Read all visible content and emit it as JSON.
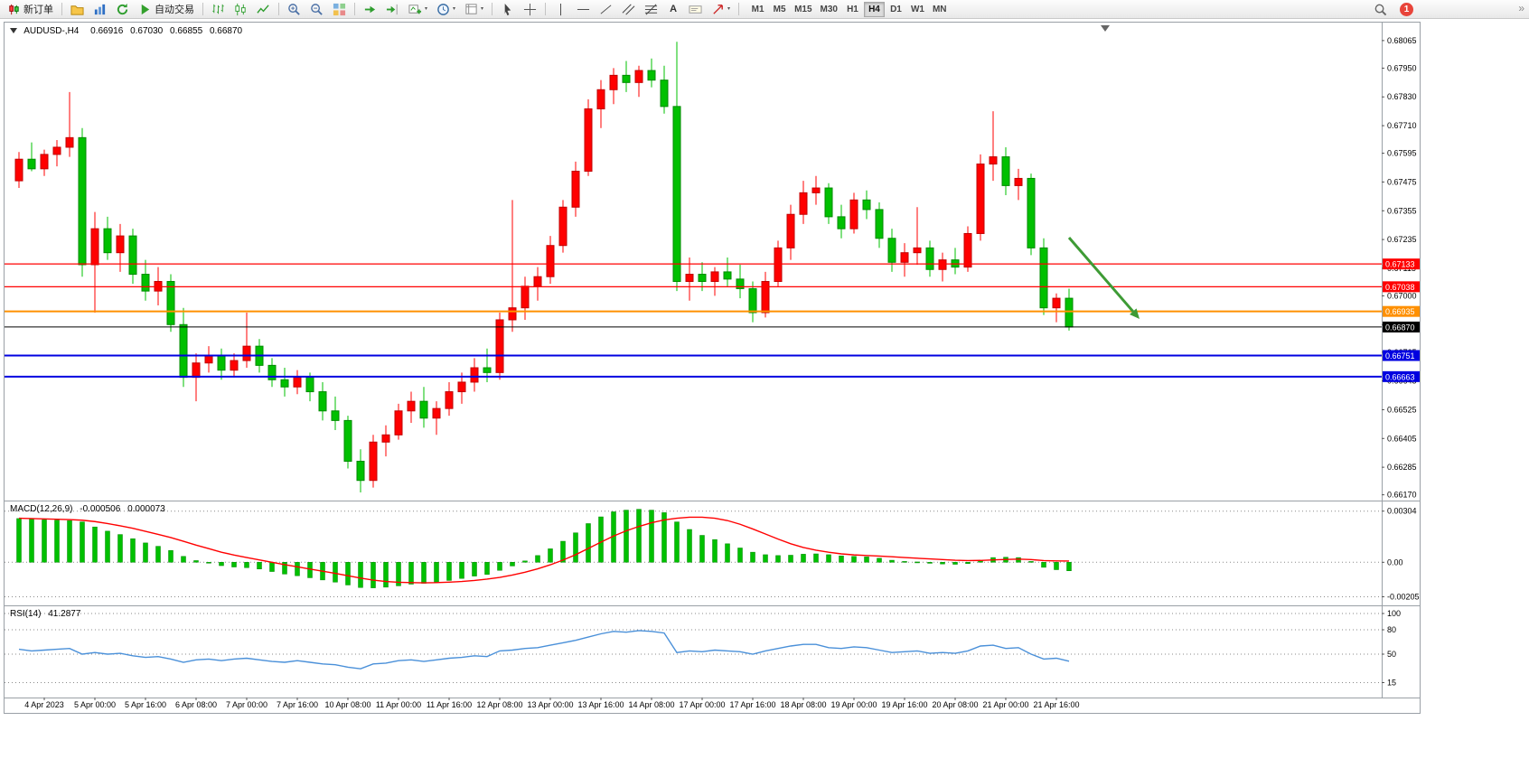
{
  "toolbar": {
    "new_order": "新订单",
    "autotrading": "自动交易",
    "text_tool_label": "A",
    "timeframes": [
      "M1",
      "M5",
      "M15",
      "M30",
      "H1",
      "H4",
      "D1",
      "W1",
      "MN"
    ],
    "active_timeframe": "H4",
    "notification_count": "1",
    "overflow_glyph": "»"
  },
  "chart_data": {
    "type": "candlestick",
    "symbol": "AUDUSD-",
    "period": "H4",
    "title": "AUDUSD-,H4",
    "ohlc_display": {
      "open": "0.66916",
      "high": "0.67030",
      "low": "0.66855",
      "close": "0.66870"
    },
    "price_range": {
      "top": 0.6814,
      "bottom": 0.66146
    },
    "price_axis_labels": [
      "0.68065",
      "0.67950",
      "0.67830",
      "0.67710",
      "0.67595",
      "0.67475",
      "0.67355",
      "0.67235",
      "0.67115",
      "0.67000",
      "0.66880",
      "0.66765",
      "0.66645",
      "0.66525",
      "0.66405",
      "0.66285",
      "0.66170"
    ],
    "time_labels": [
      "4 Apr 2023",
      "5 Apr 00:00",
      "5 Apr 16:00",
      "6 Apr 08:00",
      "7 Apr 00:00",
      "7 Apr 16:00",
      "10 Apr 08:00",
      "11 Apr 00:00",
      "11 Apr 16:00",
      "12 Apr 08:00",
      "13 Apr 00:00",
      "13 Apr 16:00",
      "14 Apr 08:00",
      "17 Apr 00:00",
      "17 Apr 16:00",
      "18 Apr 08:00",
      "19 Apr 00:00",
      "19 Apr 16:00",
      "20 Apr 08:00",
      "21 Apr 00:00",
      "21 Apr 16:00"
    ],
    "colors": {
      "bull": "#ff0000",
      "bull_border": "#c00000",
      "bear": "#00c000",
      "bear_border": "#008a00",
      "macd_histogram": "#00c000",
      "macd_signal": "#ff0000",
      "rsi_line": "#4a90d9",
      "arrow": "#3e9b35"
    },
    "hlines": [
      {
        "price": "0.67133",
        "value": 0.67133,
        "color": "#ff0000",
        "width": 1.2
      },
      {
        "price": "0.67038",
        "value": 0.67038,
        "color": "#ff0000",
        "width": 1.2
      },
      {
        "price": "0.66935",
        "value": 0.66935,
        "color": "#ff9000",
        "width": 2
      },
      {
        "price": "0.66751",
        "value": 0.66751,
        "color": "#0000e0",
        "width": 2
      },
      {
        "price": "0.66663",
        "value": 0.66663,
        "color": "#0000e0",
        "width": 2
      }
    ],
    "current_price": {
      "price": "0.66870",
      "value": 0.6687,
      "color": "#000000"
    },
    "arrow_annotation": {
      "color": "#3e9b35",
      "from": [
        1178,
        238
      ],
      "to": [
        1256,
        328
      ]
    },
    "candles": [
      [
        0.6748,
        0.676,
        0.6745,
        0.6757
      ],
      [
        0.6757,
        0.6764,
        0.6752,
        0.6753
      ],
      [
        0.6753,
        0.6761,
        0.675,
        0.6759
      ],
      [
        0.6759,
        0.6765,
        0.6754,
        0.6762
      ],
      [
        0.6762,
        0.6785,
        0.6758,
        0.6766
      ],
      [
        0.6766,
        0.677,
        0.6708,
        0.6713
      ],
      [
        0.6713,
        0.6735,
        0.6693,
        0.6728
      ],
      [
        0.6728,
        0.6733,
        0.6715,
        0.6718
      ],
      [
        0.6718,
        0.673,
        0.671,
        0.6725
      ],
      [
        0.6725,
        0.6728,
        0.6705,
        0.6709
      ],
      [
        0.6709,
        0.6715,
        0.6698,
        0.6702
      ],
      [
        0.6702,
        0.6712,
        0.6696,
        0.6706
      ],
      [
        0.6706,
        0.6709,
        0.6685,
        0.6688
      ],
      [
        0.6688,
        0.6695,
        0.6662,
        0.6666
      ],
      [
        0.6666,
        0.6676,
        0.6656,
        0.6672
      ],
      [
        0.6672,
        0.6679,
        0.6668,
        0.6675
      ],
      [
        0.6675,
        0.6678,
        0.6665,
        0.6669
      ],
      [
        0.6669,
        0.6676,
        0.6666,
        0.6673
      ],
      [
        0.6673,
        0.6693,
        0.667,
        0.6679
      ],
      [
        0.6679,
        0.6682,
        0.6668,
        0.6671
      ],
      [
        0.6671,
        0.6674,
        0.6662,
        0.6665
      ],
      [
        0.6665,
        0.667,
        0.6658,
        0.6662
      ],
      [
        0.6662,
        0.6669,
        0.6659,
        0.6666
      ],
      [
        0.6666,
        0.6668,
        0.6656,
        0.666
      ],
      [
        0.666,
        0.6664,
        0.6648,
        0.6652
      ],
      [
        0.6652,
        0.6658,
        0.6644,
        0.6648
      ],
      [
        0.6648,
        0.665,
        0.6628,
        0.6631
      ],
      [
        0.6631,
        0.6636,
        0.6618,
        0.6623
      ],
      [
        0.6623,
        0.6642,
        0.662,
        0.6639
      ],
      [
        0.6639,
        0.6646,
        0.6633,
        0.6642
      ],
      [
        0.6642,
        0.6655,
        0.664,
        0.6652
      ],
      [
        0.6652,
        0.666,
        0.6647,
        0.6656
      ],
      [
        0.6656,
        0.6662,
        0.6645,
        0.6649
      ],
      [
        0.6649,
        0.6656,
        0.6642,
        0.6653
      ],
      [
        0.6653,
        0.6664,
        0.665,
        0.666
      ],
      [
        0.666,
        0.6668,
        0.6655,
        0.6664
      ],
      [
        0.6664,
        0.6674,
        0.666,
        0.667
      ],
      [
        0.667,
        0.6678,
        0.6664,
        0.6668
      ],
      [
        0.6668,
        0.6693,
        0.6665,
        0.669
      ],
      [
        0.669,
        0.674,
        0.6685,
        0.6695
      ],
      [
        0.6695,
        0.6708,
        0.669,
        0.6704
      ],
      [
        0.6704,
        0.6712,
        0.6698,
        0.6708
      ],
      [
        0.6708,
        0.6725,
        0.6705,
        0.6721
      ],
      [
        0.6721,
        0.674,
        0.6718,
        0.6737
      ],
      [
        0.6737,
        0.6756,
        0.6733,
        0.6752
      ],
      [
        0.6752,
        0.6782,
        0.675,
        0.6778
      ],
      [
        0.6778,
        0.679,
        0.677,
        0.6786
      ],
      [
        0.6786,
        0.6795,
        0.678,
        0.6792
      ],
      [
        0.6792,
        0.6798,
        0.6785,
        0.6789
      ],
      [
        0.6789,
        0.6796,
        0.6783,
        0.6794
      ],
      [
        0.6794,
        0.6799,
        0.6787,
        0.679
      ],
      [
        0.679,
        0.6796,
        0.6776,
        0.6779
      ],
      [
        0.6779,
        0.6806,
        0.6702,
        0.6706
      ],
      [
        0.6706,
        0.6716,
        0.6698,
        0.6709
      ],
      [
        0.6709,
        0.6714,
        0.6702,
        0.6706
      ],
      [
        0.6706,
        0.6712,
        0.67,
        0.671
      ],
      [
        0.671,
        0.6716,
        0.6704,
        0.6707
      ],
      [
        0.6707,
        0.6713,
        0.6699,
        0.6703
      ],
      [
        0.6703,
        0.6706,
        0.6689,
        0.6693
      ],
      [
        0.6693,
        0.671,
        0.6691,
        0.6706
      ],
      [
        0.6706,
        0.6723,
        0.6704,
        0.672
      ],
      [
        0.672,
        0.6738,
        0.6715,
        0.6734
      ],
      [
        0.6734,
        0.6748,
        0.673,
        0.6743
      ],
      [
        0.6743,
        0.675,
        0.6738,
        0.6745
      ],
      [
        0.6745,
        0.6747,
        0.673,
        0.6733
      ],
      [
        0.6733,
        0.6738,
        0.6724,
        0.6728
      ],
      [
        0.6728,
        0.6743,
        0.6726,
        0.674
      ],
      [
        0.674,
        0.6744,
        0.6732,
        0.6736
      ],
      [
        0.6736,
        0.6739,
        0.672,
        0.6724
      ],
      [
        0.6724,
        0.6728,
        0.671,
        0.6714
      ],
      [
        0.6714,
        0.6722,
        0.6708,
        0.6718
      ],
      [
        0.6718,
        0.6737,
        0.6713,
        0.672
      ],
      [
        0.672,
        0.6723,
        0.6708,
        0.6711
      ],
      [
        0.6711,
        0.6718,
        0.6706,
        0.6715
      ],
      [
        0.6715,
        0.672,
        0.6709,
        0.6712
      ],
      [
        0.6712,
        0.6729,
        0.671,
        0.6726
      ],
      [
        0.6726,
        0.6759,
        0.6723,
        0.6755
      ],
      [
        0.6755,
        0.6777,
        0.6748,
        0.6758
      ],
      [
        0.6758,
        0.6762,
        0.6742,
        0.6746
      ],
      [
        0.6746,
        0.6753,
        0.674,
        0.6749
      ],
      [
        0.6749,
        0.6751,
        0.6717,
        0.672
      ],
      [
        0.672,
        0.6724,
        0.6692,
        0.6695
      ],
      [
        0.6695,
        0.6701,
        0.6689,
        0.6699
      ],
      [
        0.6699,
        0.6703,
        0.66855,
        0.6687
      ]
    ],
    "macd": {
      "label": "MACD(12,26,9)",
      "main_value": "-0.000506",
      "signal_value": "0.000073",
      "axis_labels": [
        "0.00304",
        "0.00",
        "-0.00205"
      ],
      "scale": {
        "max": 0.0034,
        "min": -0.0024
      },
      "histogram": [
        0.0026,
        0.00256,
        0.00252,
        0.0025,
        0.00248,
        0.0024,
        0.0021,
        0.00185,
        0.00165,
        0.0014,
        0.00115,
        0.00095,
        0.0007,
        0.00035,
        0.0001,
        -5e-05,
        -0.0002,
        -0.00028,
        -0.00032,
        -0.0004,
        -0.00055,
        -0.0007,
        -0.0008,
        -0.00092,
        -0.00105,
        -0.00118,
        -0.00135,
        -0.0015,
        -0.00152,
        -0.00148,
        -0.0014,
        -0.0013,
        -0.00125,
        -0.00118,
        -0.00108,
        -0.00096,
        -0.00082,
        -0.00072,
        -0.00048,
        -0.00022,
        8e-05,
        0.0004,
        0.0008,
        0.00125,
        0.00175,
        0.0023,
        0.0027,
        0.003,
        0.0031,
        0.00315,
        0.0031,
        0.00295,
        0.0024,
        0.00195,
        0.0016,
        0.00135,
        0.0011,
        0.00085,
        0.0006,
        0.00045,
        0.0004,
        0.00042,
        0.00048,
        0.0005,
        0.00045,
        0.00038,
        0.00035,
        0.00032,
        0.00024,
        0.00012,
        5e-05,
        2e-05,
        -6e-05,
        -0.0001,
        -0.00012,
        -8e-05,
        0.0001,
        0.00028,
        0.0003,
        0.00028,
        5e-05,
        -0.0003,
        -0.00044,
        -0.000506
      ],
      "signal": [
        0.00262,
        0.0026,
        0.00258,
        0.00256,
        0.00254,
        0.0025,
        0.00242,
        0.0023,
        0.00217,
        0.00202,
        0.00184,
        0.00166,
        0.00147,
        0.00125,
        0.00102,
        0.00081,
        0.0006,
        0.00043,
        0.00028,
        0.00014,
        0.0,
        -0.00014,
        -0.00027,
        -0.0004,
        -0.00053,
        -0.00066,
        -0.0008,
        -0.00094,
        -0.00106,
        -0.00114,
        -0.00119,
        -0.00121,
        -0.00122,
        -0.00121,
        -0.00118,
        -0.00114,
        -0.00108,
        -0.001,
        -0.0009,
        -0.00076,
        -0.00059,
        -0.00039,
        -0.00015,
        0.00013,
        0.00045,
        0.00082,
        0.0012,
        0.00156,
        0.00187,
        0.00213,
        0.00235,
        0.00252,
        0.00262,
        0.00268,
        0.00268,
        0.00262,
        0.00248,
        0.00226,
        0.00198,
        0.00168,
        0.00138,
        0.0011,
        0.00088,
        0.00072,
        0.0006,
        0.0005,
        0.00044,
        0.0004,
        0.00037,
        0.00033,
        0.00028,
        0.00024,
        0.0002,
        0.00016,
        0.00012,
        0.0001,
        0.00011,
        0.00014,
        0.00017,
        0.00019,
        0.00016,
        0.0001,
        8e-05,
        7.3e-05
      ]
    },
    "rsi": {
      "label": "RSI(14)",
      "value": "41.2877",
      "axis_labels": [
        "100",
        "80",
        "50",
        "15"
      ],
      "levels": [
        100,
        80,
        50,
        15
      ],
      "values": [
        56,
        54,
        55,
        56,
        57,
        50,
        52,
        50,
        51,
        48,
        46,
        47,
        44,
        40,
        43,
        44,
        42,
        44,
        45,
        43,
        41,
        40,
        42,
        40,
        38,
        37,
        34,
        32,
        38,
        39,
        42,
        43,
        41,
        43,
        45,
        46,
        48,
        47,
        54,
        55,
        57,
        58,
        61,
        64,
        67,
        71,
        75,
        78,
        77,
        79,
        78,
        76,
        52,
        54,
        53,
        55,
        54,
        53,
        50,
        54,
        57,
        60,
        62,
        62,
        58,
        57,
        59,
        58,
        55,
        52,
        53,
        54,
        51,
        52,
        51,
        54,
        60,
        61,
        57,
        58,
        50,
        44,
        45,
        41.29
      ]
    }
  }
}
